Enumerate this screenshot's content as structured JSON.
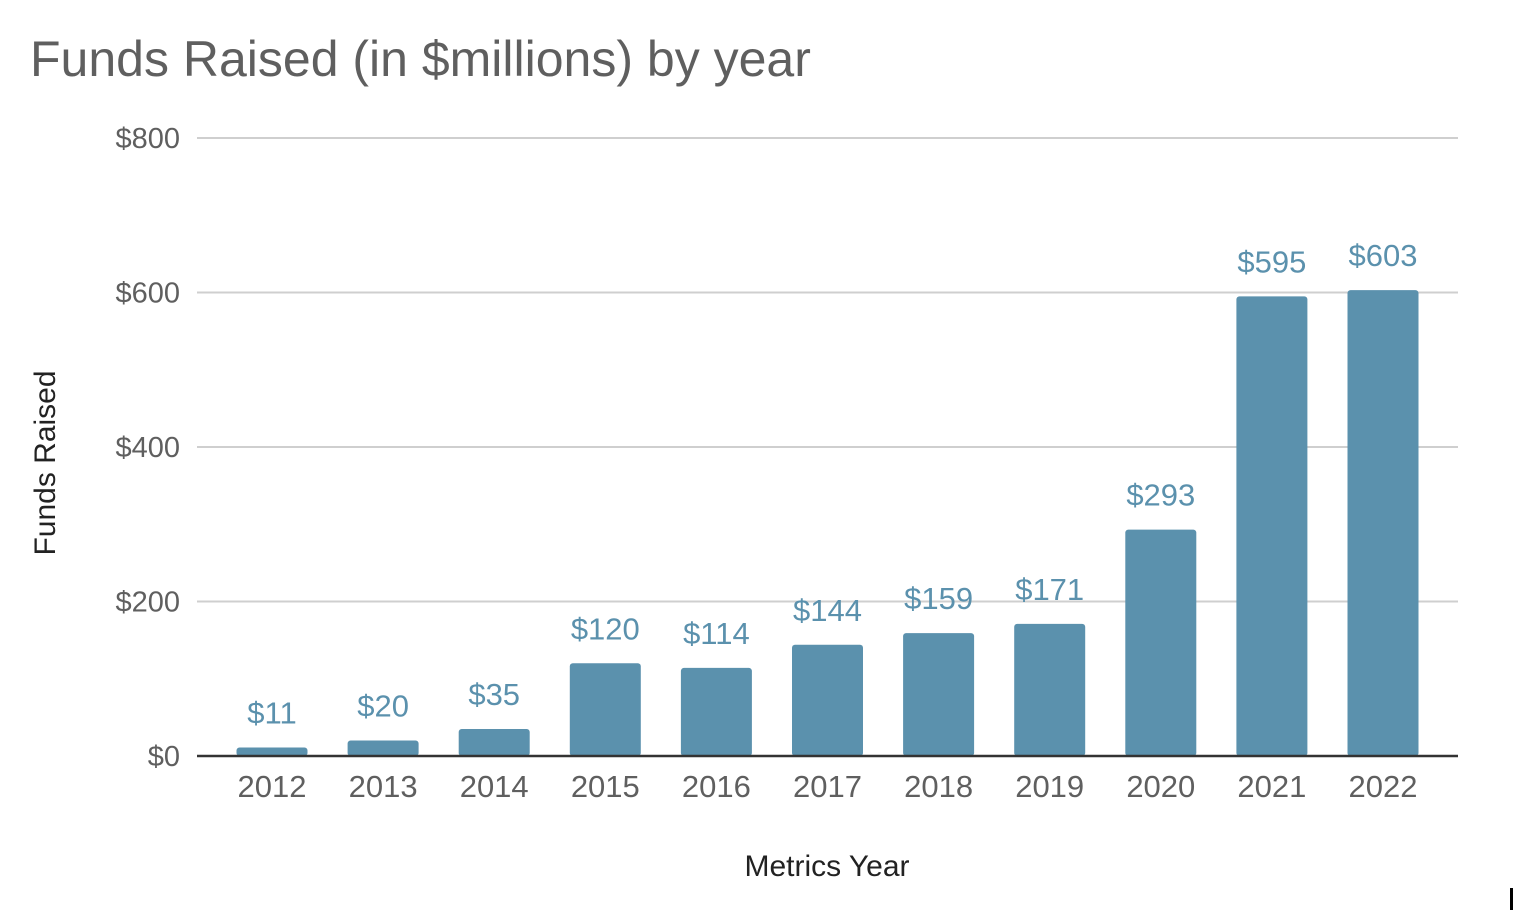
{
  "chart_data": {
    "type": "bar",
    "title": "Funds Raised (in $millions) by year",
    "xlabel": "Metrics Year",
    "ylabel": "Funds Raised",
    "ylim": [
      0,
      800
    ],
    "yticks": [
      0,
      200,
      400,
      600,
      800
    ],
    "ytick_labels": [
      "$0",
      "$200",
      "$400",
      "$600",
      "$800"
    ],
    "grid": true,
    "legend": "none",
    "bar_color": "#5b91ad",
    "label_color": "#5b91ad",
    "categories": [
      "2012",
      "2013",
      "2014",
      "2015",
      "2016",
      "2017",
      "2018",
      "2019",
      "2020",
      "2021",
      "2022"
    ],
    "values": [
      11,
      20,
      35,
      120,
      114,
      144,
      159,
      171,
      293,
      595,
      603
    ],
    "data_labels": [
      "$11",
      "$20",
      "$35",
      "$120",
      "$114",
      "$144",
      "$159",
      "$171",
      "$293",
      "$595",
      "$603"
    ]
  }
}
